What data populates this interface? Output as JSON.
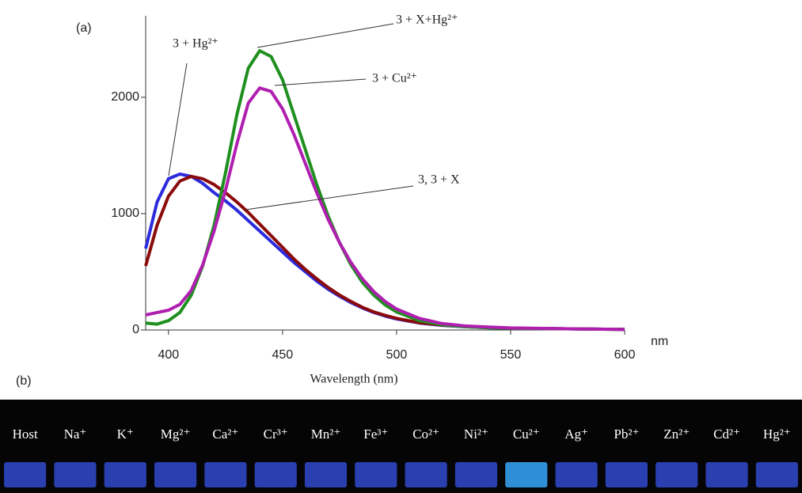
{
  "chart_data": {
    "type": "line",
    "panel_label": "(a)",
    "x_label": "Wavelength (nm)",
    "x_unit": "nm",
    "x": [
      390,
      395,
      400,
      405,
      410,
      415,
      420,
      425,
      430,
      435,
      440,
      445,
      450,
      455,
      460,
      465,
      470,
      475,
      480,
      485,
      490,
      495,
      500,
      510,
      520,
      530,
      540,
      550,
      575,
      600
    ],
    "series": [
      {
        "name": "3 + Hg²⁺",
        "color": "#2b2bdc",
        "values": [
          700,
          1100,
          1300,
          1340,
          1320,
          1260,
          1180,
          1110,
          1030,
          940,
          850,
          760,
          670,
          580,
          500,
          420,
          350,
          290,
          235,
          190,
          150,
          120,
          95,
          60,
          40,
          28,
          20,
          15,
          10,
          5
        ]
      },
      {
        "name": "3 + X+Hg²⁺",
        "color": "#8b0a0a",
        "values": [
          550,
          900,
          1150,
          1280,
          1320,
          1300,
          1250,
          1180,
          1100,
          1010,
          910,
          810,
          710,
          610,
          520,
          440,
          365,
          300,
          245,
          195,
          155,
          125,
          100,
          62,
          42,
          30,
          22,
          16,
          10,
          5
        ]
      },
      {
        "name": "3 + Cu²⁺",
        "color": "#1f8f1f",
        "values": [
          60,
          50,
          80,
          150,
          300,
          550,
          900,
          1350,
          1850,
          2250,
          2400,
          2350,
          2150,
          1850,
          1550,
          1250,
          980,
          750,
          560,
          410,
          300,
          215,
          155,
          80,
          45,
          28,
          20,
          15,
          10,
          5
        ]
      },
      {
        "name": "3, 3 + X",
        "color": "#b01fb0",
        "values": [
          130,
          150,
          170,
          220,
          340,
          560,
          850,
          1200,
          1600,
          1950,
          2080,
          2050,
          1900,
          1680,
          1430,
          1180,
          950,
          750,
          580,
          440,
          330,
          245,
          180,
          100,
          55,
          35,
          25,
          18,
          10,
          5
        ]
      }
    ],
    "xlim": [
      390,
      600
    ],
    "xticks": [
      400,
      450,
      500,
      550,
      600
    ],
    "ylim": [
      0,
      2700
    ],
    "yticks": [
      0,
      1000,
      2000
    ]
  },
  "photo": {
    "panel_label": "(b)",
    "labels": [
      "Host",
      "Na⁺",
      "K⁺",
      "Mg²⁺",
      "Ca²⁺",
      "Cr³⁺",
      "Mn²⁺",
      "Fe³⁺",
      "Co²⁺",
      "Ni²⁺",
      "Cu²⁺",
      "Ag⁺",
      "Pb²⁺",
      "Zn²⁺",
      "Cd²⁺",
      "Hg²⁺"
    ],
    "colors": [
      "#2a3fb0",
      "#2a3fb0",
      "#2a3fb0",
      "#2a3fb0",
      "#2a3fb0",
      "#2a3fb0",
      "#2a3fb0",
      "#2a3fb0",
      "#2a3fb0",
      "#2a3fb0",
      "#2f8fd6",
      "#2a3fb0",
      "#2a3fb0",
      "#2a3fb0",
      "#2a3fb0",
      "#2a3fb0"
    ]
  }
}
